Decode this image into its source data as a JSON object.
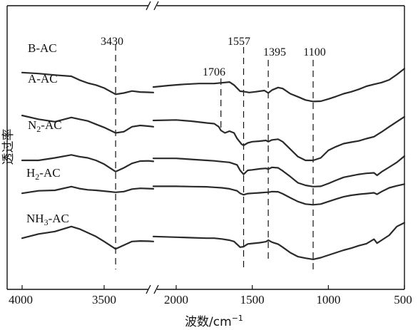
{
  "chart_data": {
    "type": "line",
    "title": "",
    "xlabel": "波数/cm",
    "xlabel_sup": "−1",
    "ylabel": "透过率",
    "x_axis_reversed": true,
    "x_axis_break": {
      "between": [
        2150,
        3200
      ]
    },
    "x_segments": [
      {
        "xlim": [
          4000,
          3200
        ],
        "ticks": [
          4000,
          3500
        ]
      },
      {
        "xlim": [
          2150,
          500
        ],
        "ticks": [
          2000,
          1500,
          1000,
          500
        ]
      }
    ],
    "tick_labels": [
      "4000",
      "3500",
      "2000",
      "1500",
      "1000",
      "500"
    ],
    "grid": false,
    "legend": "inline-left",
    "peak_markers": [
      {
        "label": "3430",
        "x": 3430
      },
      {
        "label": "1706",
        "x": 1706
      },
      {
        "label": "1557",
        "x": 1557
      },
      {
        "label": "1395",
        "x": 1395
      },
      {
        "label": "1100",
        "x": 1100
      }
    ],
    "series": [
      {
        "name": "B-AC",
        "label_parts": [
          {
            "t": "B-AC"
          }
        ],
        "points": [
          [
            4000,
            26.8
          ],
          [
            3900,
            27.2
          ],
          [
            3800,
            27.8
          ],
          [
            3700,
            28.3
          ],
          [
            3650,
            29.8
          ],
          [
            3600,
            31.0
          ],
          [
            3550,
            31.8
          ],
          [
            3500,
            33.0
          ],
          [
            3430,
            35.5
          ],
          [
            3380,
            35.0
          ],
          [
            3330,
            34.2
          ],
          [
            3280,
            34.6
          ],
          [
            3230,
            34.7
          ],
          [
            3200,
            34.8
          ],
          [
            2150,
            32.6
          ],
          [
            2050,
            32.0
          ],
          [
            1950,
            31.5
          ],
          [
            1850,
            31.2
          ],
          [
            1750,
            31.2
          ],
          [
            1650,
            30.6
          ],
          [
            1620,
            31.8
          ],
          [
            1580,
            34.3
          ],
          [
            1557,
            34.4
          ],
          [
            1520,
            34.8
          ],
          [
            1480,
            34.5
          ],
          [
            1420,
            34.0
          ],
          [
            1395,
            35.0
          ],
          [
            1370,
            33.8
          ],
          [
            1330,
            32.8
          ],
          [
            1300,
            33.2
          ],
          [
            1250,
            35.3
          ],
          [
            1200,
            36.5
          ],
          [
            1150,
            37.8
          ],
          [
            1100,
            38.4
          ],
          [
            1050,
            38.3
          ],
          [
            1000,
            37.4
          ],
          [
            950,
            36.4
          ],
          [
            900,
            35.3
          ],
          [
            850,
            34.5
          ],
          [
            800,
            33.5
          ],
          [
            750,
            32.3
          ],
          [
            700,
            31.5
          ],
          [
            650,
            30.8
          ],
          [
            600,
            29.7
          ],
          [
            550,
            27.6
          ],
          [
            500,
            25.2
          ]
        ]
      },
      {
        "name": "A-AC",
        "label_parts": [
          {
            "t": "A-AC"
          }
        ],
        "points": [
          [
            4000,
            44.0
          ],
          [
            3900,
            45.5
          ],
          [
            3800,
            46.5
          ],
          [
            3700,
            44.8
          ],
          [
            3650,
            45.5
          ],
          [
            3600,
            46.2
          ],
          [
            3550,
            47.5
          ],
          [
            3500,
            48.8
          ],
          [
            3430,
            51.0
          ],
          [
            3380,
            50.5
          ],
          [
            3330,
            48.5
          ],
          [
            3280,
            48.0
          ],
          [
            3230,
            48.3
          ],
          [
            3200,
            48.5
          ],
          [
            2150,
            46.0
          ],
          [
            2000,
            45.8
          ],
          [
            1900,
            46.3
          ],
          [
            1800,
            47.0
          ],
          [
            1750,
            47.3
          ],
          [
            1720,
            48.5
          ],
          [
            1706,
            50.0
          ],
          [
            1680,
            51.0
          ],
          [
            1650,
            50.3
          ],
          [
            1620,
            51.0
          ],
          [
            1600,
            53.2
          ],
          [
            1570,
            55.5
          ],
          [
            1557,
            56.0
          ],
          [
            1530,
            55.0
          ],
          [
            1500,
            54.5
          ],
          [
            1450,
            54.3
          ],
          [
            1410,
            54.0
          ],
          [
            1395,
            54.5
          ],
          [
            1370,
            53.8
          ],
          [
            1330,
            53.5
          ],
          [
            1300,
            54.5
          ],
          [
            1250,
            57.5
          ],
          [
            1200,
            60.5
          ],
          [
            1150,
            62.0
          ],
          [
            1100,
            62.0
          ],
          [
            1050,
            61.0
          ],
          [
            1000,
            58.0
          ],
          [
            950,
            56.5
          ],
          [
            900,
            55.3
          ],
          [
            850,
            54.7
          ],
          [
            800,
            54.2
          ],
          [
            750,
            53.3
          ],
          [
            700,
            52.5
          ],
          [
            650,
            50.6
          ],
          [
            600,
            48.5
          ],
          [
            550,
            46.5
          ],
          [
            500,
            44.5
          ]
        ]
      },
      {
        "name": "N2-AC",
        "label_parts": [
          {
            "t": "N"
          },
          {
            "t": "2",
            "sub": true
          },
          {
            "t": "-AC"
          }
        ],
        "points": [
          [
            4000,
            62.0
          ],
          [
            3900,
            62.0
          ],
          [
            3800,
            61.0
          ],
          [
            3700,
            59.8
          ],
          [
            3650,
            60.5
          ],
          [
            3600,
            61.0
          ],
          [
            3550,
            62.0
          ],
          [
            3500,
            63.5
          ],
          [
            3430,
            66.5
          ],
          [
            3380,
            65.0
          ],
          [
            3330,
            63.2
          ],
          [
            3280,
            62.3
          ],
          [
            3230,
            62.2
          ],
          [
            3200,
            62.4
          ],
          [
            2150,
            61.2
          ],
          [
            2000,
            61.2
          ],
          [
            1900,
            61.6
          ],
          [
            1800,
            62.0
          ],
          [
            1750,
            62.2
          ],
          [
            1700,
            62.5
          ],
          [
            1650,
            62.8
          ],
          [
            1600,
            63.8
          ],
          [
            1580,
            66.0
          ],
          [
            1557,
            67.6
          ],
          [
            1530,
            66.0
          ],
          [
            1500,
            65.8
          ],
          [
            1450,
            65.4
          ],
          [
            1410,
            65.2
          ],
          [
            1395,
            65.5
          ],
          [
            1370,
            64.8
          ],
          [
            1330,
            65.0
          ],
          [
            1300,
            66.2
          ],
          [
            1250,
            68.5
          ],
          [
            1200,
            71.0
          ],
          [
            1150,
            72.0
          ],
          [
            1100,
            72.5
          ],
          [
            1050,
            72.4
          ],
          [
            1000,
            71.3
          ],
          [
            950,
            70.0
          ],
          [
            900,
            68.8
          ],
          [
            850,
            68.2
          ],
          [
            800,
            67.6
          ],
          [
            750,
            67.2
          ],
          [
            700,
            67.0
          ],
          [
            680,
            68.0
          ],
          [
            650,
            66.6
          ],
          [
            600,
            64.7
          ],
          [
            550,
            62.8
          ],
          [
            500,
            60.3
          ]
        ]
      },
      {
        "name": "H2-AC",
        "label_parts": [
          {
            "t": "H"
          },
          {
            "t": "2",
            "sub": true
          },
          {
            "t": "-AC"
          }
        ],
        "points": [
          [
            4000,
            75.2
          ],
          [
            3900,
            74.2
          ],
          [
            3800,
            74.0
          ],
          [
            3700,
            72.5
          ],
          [
            3650,
            73.3
          ],
          [
            3600,
            73.8
          ],
          [
            3550,
            74.0
          ],
          [
            3500,
            74.3
          ],
          [
            3430,
            74.8
          ],
          [
            3380,
            74.5
          ],
          [
            3330,
            73.5
          ],
          [
            3280,
            73.2
          ],
          [
            3230,
            73.3
          ],
          [
            3200,
            73.4
          ],
          [
            2150,
            72.4
          ],
          [
            2000,
            72.4
          ],
          [
            1900,
            72.5
          ],
          [
            1800,
            72.6
          ],
          [
            1750,
            72.8
          ],
          [
            1700,
            73.0
          ],
          [
            1650,
            73.4
          ],
          [
            1600,
            74.2
          ],
          [
            1580,
            75.2
          ],
          [
            1557,
            75.8
          ],
          [
            1530,
            75.3
          ],
          [
            1500,
            75.2
          ],
          [
            1450,
            75.0
          ],
          [
            1410,
            74.8
          ],
          [
            1395,
            74.8
          ],
          [
            1370,
            74.5
          ],
          [
            1330,
            74.6
          ],
          [
            1300,
            75.4
          ],
          [
            1250,
            77.0
          ],
          [
            1200,
            78.5
          ],
          [
            1150,
            79.5
          ],
          [
            1100,
            79.8
          ],
          [
            1050,
            79.5
          ],
          [
            1000,
            78.5
          ],
          [
            950,
            77.5
          ],
          [
            900,
            76.6
          ],
          [
            850,
            76.0
          ],
          [
            800,
            75.6
          ],
          [
            750,
            75.3
          ],
          [
            700,
            75.0
          ],
          [
            680,
            75.6
          ],
          [
            650,
            74.5
          ],
          [
            600,
            73.0
          ],
          [
            550,
            72.2
          ],
          [
            500,
            71.5
          ]
        ]
      },
      {
        "name": "NH3-AC",
        "label_parts": [
          {
            "t": "NH"
          },
          {
            "t": "3",
            "sub": true
          },
          {
            "t": "-AC"
          }
        ],
        "points": [
          [
            4000,
            93.2
          ],
          [
            3900,
            91.5
          ],
          [
            3800,
            90.5
          ],
          [
            3700,
            88.5
          ],
          [
            3650,
            89.5
          ],
          [
            3600,
            91.0
          ],
          [
            3550,
            92.5
          ],
          [
            3500,
            94.5
          ],
          [
            3430,
            97.5
          ],
          [
            3380,
            96.0
          ],
          [
            3330,
            94.5
          ],
          [
            3280,
            94.3
          ],
          [
            3230,
            94.4
          ],
          [
            3200,
            94.5
          ],
          [
            2150,
            92.5
          ],
          [
            2000,
            92.8
          ],
          [
            1900,
            93.0
          ],
          [
            1800,
            93.2
          ],
          [
            1750,
            93.2
          ],
          [
            1700,
            93.5
          ],
          [
            1650,
            94.0
          ],
          [
            1620,
            94.5
          ],
          [
            1580,
            96.8
          ],
          [
            1557,
            96.6
          ],
          [
            1530,
            95.5
          ],
          [
            1500,
            95.3
          ],
          [
            1450,
            95.0
          ],
          [
            1410,
            94.6
          ],
          [
            1395,
            94.0
          ],
          [
            1370,
            94.8
          ],
          [
            1330,
            95.6
          ],
          [
            1300,
            96.8
          ],
          [
            1250,
            99.0
          ],
          [
            1200,
            100.6
          ],
          [
            1150,
            101.2
          ],
          [
            1100,
            101.7
          ],
          [
            1050,
            101.0
          ],
          [
            1000,
            100.0
          ],
          [
            950,
            99.0
          ],
          [
            900,
            98.0
          ],
          [
            850,
            97.2
          ],
          [
            800,
            96.2
          ],
          [
            750,
            95.4
          ],
          [
            700,
            93.6
          ],
          [
            680,
            95.2
          ],
          [
            650,
            94.0
          ],
          [
            600,
            92.0
          ],
          [
            550,
            88.5
          ],
          [
            500,
            87.0
          ]
        ]
      }
    ]
  }
}
